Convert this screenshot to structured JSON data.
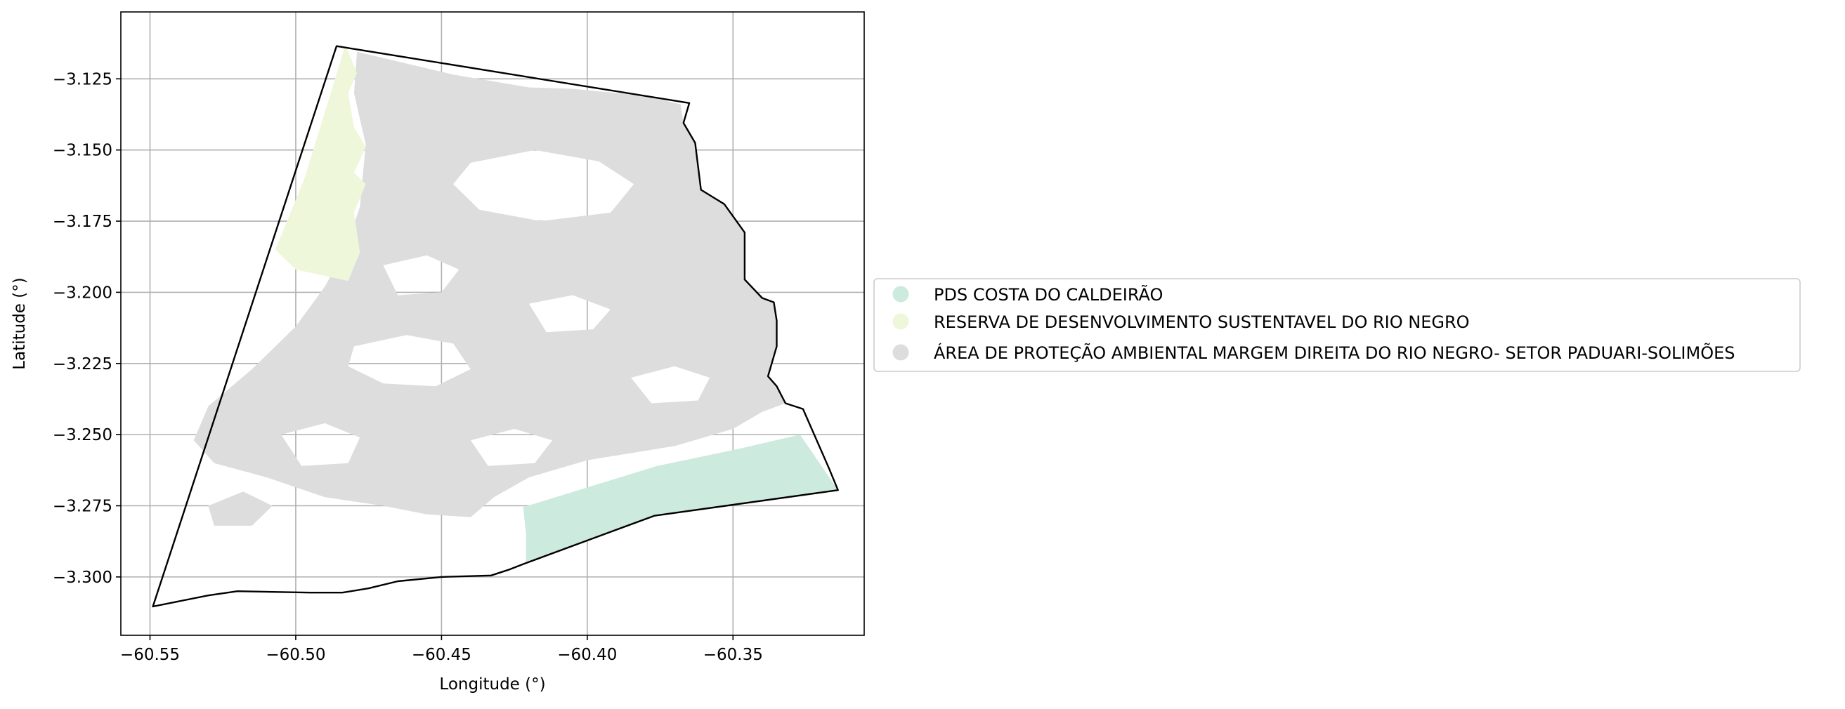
{
  "map": {
    "xlabel": "Longitude (°)",
    "ylabel": "Latitude (°)",
    "xlim": [
      -60.56,
      -60.305
    ],
    "ylim": [
      -3.3205,
      -3.1015
    ],
    "x_ticks": [
      -60.55,
      -60.5,
      -60.45,
      -60.4,
      -60.35
    ],
    "x_tick_labels": [
      "−60.55",
      "−60.50",
      "−60.45",
      "−60.40",
      "−60.35"
    ],
    "y_ticks": [
      -3.125,
      -3.15,
      -3.175,
      -3.2,
      -3.225,
      -3.25,
      -3.275,
      -3.3
    ],
    "y_tick_labels": [
      "−3.125",
      "−3.150",
      "−3.175",
      "−3.200",
      "−3.225",
      "−3.250",
      "−3.275",
      "−3.300"
    ],
    "grid": true,
    "legend_placement": "center-right outside"
  },
  "legend": {
    "items": [
      {
        "label": "PDS COSTA DO CALDEIRÃO",
        "color": "#cdeade"
      },
      {
        "label": "RESERVA DE DESENVOLVIMENTO SUSTENTAVEL DO RIO NEGRO",
        "color": "#eef7da"
      },
      {
        "label": "ÁREA DE PROTEÇÃO AMBIENTAL MARGEM DIREITA DO RIO NEGRO- SETOR PADUARI-SOLIMÕES",
        "color": "#dddddd"
      }
    ]
  },
  "regions": {
    "boundary": [
      [
        -60.549,
        -3.3104
      ],
      [
        -60.486,
        -3.1135
      ],
      [
        -60.365,
        -3.1335
      ],
      [
        -60.367,
        -3.1405
      ],
      [
        -60.363,
        -3.1475
      ],
      [
        -60.361,
        -3.164
      ],
      [
        -60.353,
        -3.169
      ],
      [
        -60.346,
        -3.179
      ],
      [
        -60.346,
        -3.1955
      ],
      [
        -60.34,
        -3.202
      ],
      [
        -60.336,
        -3.2035
      ],
      [
        -60.335,
        -3.21
      ],
      [
        -60.335,
        -3.219
      ],
      [
        -60.338,
        -3.2295
      ],
      [
        -60.335,
        -3.233
      ],
      [
        -60.332,
        -3.239
      ],
      [
        -60.326,
        -3.241
      ],
      [
        -60.317,
        -3.262
      ],
      [
        -60.314,
        -3.2695
      ],
      [
        -60.377,
        -3.2785
      ],
      [
        -60.422,
        -3.2955
      ],
      [
        -60.427,
        -3.2975
      ],
      [
        -60.433,
        -3.2995
      ],
      [
        -60.45,
        -3.3
      ],
      [
        -60.465,
        -3.3015
      ],
      [
        -60.475,
        -3.304
      ],
      [
        -60.484,
        -3.3055
      ],
      [
        -60.495,
        -3.3055
      ],
      [
        -60.52,
        -3.305
      ],
      [
        -60.53,
        -3.3065
      ],
      [
        -60.549,
        -3.3104
      ]
    ],
    "apa": [
      [
        -60.479,
        -3.1155
      ],
      [
        -60.446,
        -3.1235
      ],
      [
        -60.42,
        -3.128
      ],
      [
        -60.405,
        -3.1285
      ],
      [
        -60.38,
        -3.131
      ],
      [
        -60.368,
        -3.134
      ],
      [
        -60.367,
        -3.1405
      ],
      [
        -60.363,
        -3.1475
      ],
      [
        -60.361,
        -3.164
      ],
      [
        -60.353,
        -3.169
      ],
      [
        -60.346,
        -3.179
      ],
      [
        -60.346,
        -3.1955
      ],
      [
        -60.34,
        -3.202
      ],
      [
        -60.336,
        -3.2035
      ],
      [
        -60.335,
        -3.21
      ],
      [
        -60.335,
        -3.219
      ],
      [
        -60.338,
        -3.2295
      ],
      [
        -60.335,
        -3.233
      ],
      [
        -60.332,
        -3.239
      ],
      [
        -60.34,
        -3.242
      ],
      [
        -60.35,
        -3.248
      ],
      [
        -60.37,
        -3.254
      ],
      [
        -60.4,
        -3.259
      ],
      [
        -60.42,
        -3.265
      ],
      [
        -60.432,
        -3.272
      ],
      [
        -60.44,
        -3.279
      ],
      [
        -60.455,
        -3.278
      ],
      [
        -60.47,
        -3.275
      ],
      [
        -60.49,
        -3.272
      ],
      [
        -60.51,
        -3.265
      ],
      [
        -60.528,
        -3.26
      ],
      [
        -60.535,
        -3.252
      ],
      [
        -60.53,
        -3.24
      ],
      [
        -60.515,
        -3.227
      ],
      [
        -60.5,
        -3.212
      ],
      [
        -60.49,
        -3.198
      ],
      [
        -60.483,
        -3.185
      ],
      [
        -60.478,
        -3.17
      ],
      [
        -60.476,
        -3.148
      ],
      [
        -60.48,
        -3.13
      ]
    ],
    "apa_holes": [
      [
        [
          -60.44,
          -3.1545
        ],
        [
          -60.418,
          -3.15
        ],
        [
          -60.396,
          -3.154
        ],
        [
          -60.384,
          -3.162
        ],
        [
          -60.392,
          -3.172
        ],
        [
          -60.416,
          -3.175
        ],
        [
          -60.437,
          -3.171
        ],
        [
          -60.446,
          -3.162
        ]
      ],
      [
        [
          -60.47,
          -3.1905
        ],
        [
          -60.455,
          -3.187
        ],
        [
          -60.444,
          -3.192
        ],
        [
          -60.45,
          -3.2
        ],
        [
          -60.465,
          -3.201
        ]
      ],
      [
        [
          -60.48,
          -3.219
        ],
        [
          -60.462,
          -3.215
        ],
        [
          -60.446,
          -3.218
        ],
        [
          -60.44,
          -3.227
        ],
        [
          -60.452,
          -3.233
        ],
        [
          -60.47,
          -3.232
        ],
        [
          -60.482,
          -3.226
        ]
      ],
      [
        [
          -60.42,
          -3.204
        ],
        [
          -60.405,
          -3.201
        ],
        [
          -60.392,
          -3.206
        ],
        [
          -60.398,
          -3.213
        ],
        [
          -60.414,
          -3.214
        ]
      ],
      [
        [
          -60.505,
          -3.25
        ],
        [
          -60.49,
          -3.246
        ],
        [
          -60.478,
          -3.251
        ],
        [
          -60.482,
          -3.26
        ],
        [
          -60.498,
          -3.261
        ]
      ],
      [
        [
          -60.44,
          -3.252
        ],
        [
          -60.425,
          -3.248
        ],
        [
          -60.412,
          -3.252
        ],
        [
          -60.418,
          -3.26
        ],
        [
          -60.434,
          -3.261
        ]
      ],
      [
        [
          -60.385,
          -3.23
        ],
        [
          -60.37,
          -3.226
        ],
        [
          -60.358,
          -3.23
        ],
        [
          -60.362,
          -3.238
        ],
        [
          -60.378,
          -3.239
        ]
      ],
      [
        [
          -60.53,
          -3.275
        ],
        [
          -60.518,
          -3.27
        ],
        [
          -60.508,
          -3.275
        ],
        [
          -60.515,
          -3.282
        ],
        [
          -60.528,
          -3.282
        ]
      ]
    ],
    "rds": [
      [
        -60.483,
        -3.113
      ],
      [
        -60.479,
        -3.123
      ],
      [
        -60.482,
        -3.13
      ],
      [
        -60.48,
        -3.142
      ],
      [
        -60.476,
        -3.149
      ],
      [
        -60.48,
        -3.158
      ],
      [
        -60.476,
        -3.162
      ],
      [
        -60.48,
        -3.172
      ],
      [
        -60.478,
        -3.186
      ],
      [
        -60.482,
        -3.196
      ],
      [
        -60.5,
        -3.192
      ],
      [
        -60.507,
        -3.185
      ],
      [
        -60.497,
        -3.16
      ],
      [
        -60.488,
        -3.13
      ]
    ],
    "pds": [
      [
        -60.422,
        -3.2755
      ],
      [
        -60.376,
        -3.261
      ],
      [
        -60.348,
        -3.255
      ],
      [
        -60.327,
        -3.25
      ],
      [
        -60.314,
        -3.2695
      ],
      [
        -60.377,
        -3.2785
      ],
      [
        -60.421,
        -3.295
      ],
      [
        -60.421,
        -3.285
      ]
    ]
  }
}
